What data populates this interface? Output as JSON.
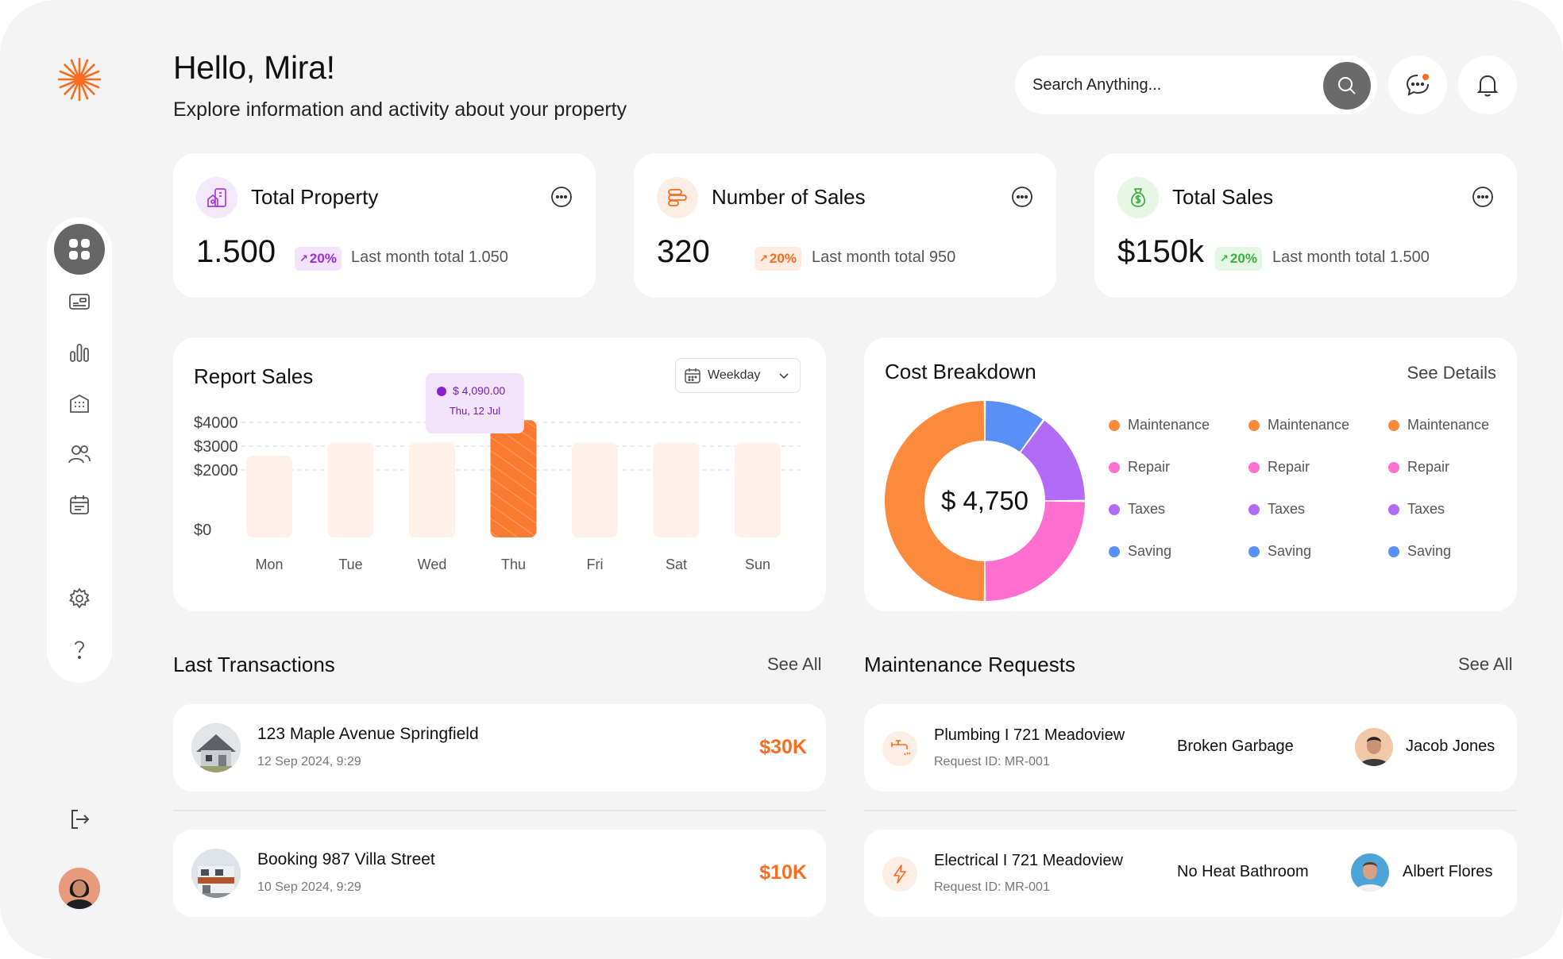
{
  "header": {
    "greeting": "Hello, Mira!",
    "subtitle": "Explore information and activity about your property",
    "search_placeholder": "Search Anything..."
  },
  "icons": {
    "logo": "sunburst-logo",
    "search": "search-icon",
    "chat": "chat-icon",
    "bell": "bell-icon",
    "sidebar": [
      "dashboard-grid-icon",
      "card-icon",
      "bar-chart-icon",
      "building-icon",
      "users-icon",
      "calendar-icon",
      "gear-icon",
      "help-icon"
    ],
    "logout": "logout-icon"
  },
  "stats": [
    {
      "title": "Total Property",
      "value": "1.500",
      "badge": "20%",
      "note": "Last month total 1.050",
      "icon": "property-icon",
      "badge_color": "#9a2fd8",
      "badge_bg": "#f3e3fb"
    },
    {
      "title": "Number of Sales",
      "value": "320",
      "badge": "20%",
      "note": "Last month total 950",
      "icon": "sales-list-icon",
      "badge_color": "#fb6d1e",
      "badge_bg": "#fdece1"
    },
    {
      "title": "Total Sales",
      "value": "$150k",
      "badge": "20%",
      "note": "Last month total 1.500",
      "icon": "money-bag-icon",
      "badge_color": "#38b63c",
      "badge_bg": "#e6f6e4"
    }
  ],
  "report": {
    "title": "Report Sales",
    "filter": "Weekday",
    "tooltip_value": "$ 4,090.00",
    "tooltip_date": "Thu, 12 Jul"
  },
  "chart_data": {
    "type": "bar",
    "title": "Report Sales",
    "categories": [
      "Mon",
      "Tue",
      "Wed",
      "Thu",
      "Fri",
      "Sat",
      "Sun"
    ],
    "values": [
      2600,
      3150,
      3150,
      4090,
      3150,
      3150,
      3150
    ],
    "yticks": [
      "$4000",
      "$3000",
      "$2000",
      "$0"
    ],
    "ytick_values": [
      4000,
      3000,
      2000,
      0
    ],
    "ylim": [
      0,
      4000
    ],
    "highlight": "Thu",
    "colors": {
      "bar": "#fdf1ea",
      "highlight": "#fb7a32"
    }
  },
  "breakdown": {
    "title": "Cost Breakdown",
    "link": "See Details",
    "total": "$ 4,750",
    "segments": [
      {
        "name": "Maintenance",
        "value": 50,
        "color": "#fb8a3c"
      },
      {
        "name": "Repair",
        "value": 25,
        "color": "#ff6fd0"
      },
      {
        "name": "Taxes",
        "value": 15,
        "color": "#b26bf6"
      },
      {
        "name": "Saving",
        "value": 10,
        "color": "#5b8ff8"
      }
    ],
    "legend_columns": [
      [
        "Maintenance",
        "Repair",
        "Taxes",
        "Saving"
      ],
      [
        "Maintenance",
        "Repair",
        "Taxes",
        "Saving"
      ],
      [
        "Maintenance",
        "Repair",
        "Taxes",
        "Saving"
      ]
    ]
  },
  "transactions": {
    "title": "Last Transactions",
    "link": "See All",
    "items": [
      {
        "title": "123 Maple Avenue Springfield",
        "date": "12 Sep 2024, 9:29",
        "amount": "$30K"
      },
      {
        "title": "Booking 987 Villa Street",
        "date": "10 Sep 2024, 9:29",
        "amount": "$10K"
      }
    ]
  },
  "maintenance": {
    "title": "Maintenance Requests",
    "link": "See All",
    "items": [
      {
        "title": "Plumbing I 721 Meadoview",
        "id": "Request ID: MR-001",
        "issue": "Broken Garbage",
        "name": "Jacob Jones",
        "icon": "faucet-icon"
      },
      {
        "title": "Electrical I 721 Meadoview",
        "id": "Request ID: MR-001",
        "issue": "No Heat Bathroom",
        "name": "Albert Flores",
        "icon": "lightning-icon"
      }
    ]
  }
}
